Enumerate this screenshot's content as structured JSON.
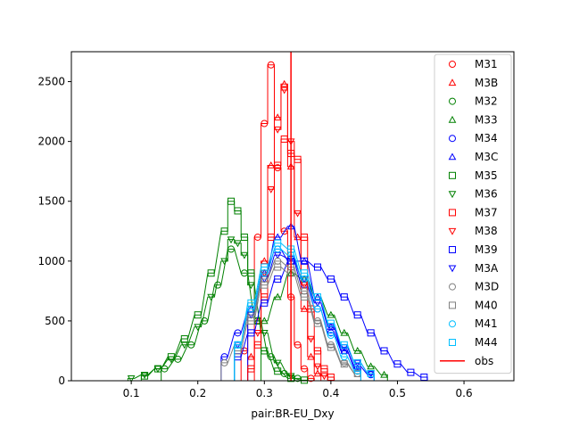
{
  "chart_data": {
    "type": "line",
    "title": "",
    "xlabel": "pair:BR-EU_Dxy",
    "ylabel": "",
    "xlim": [
      0.01,
      0.675
    ],
    "ylim": [
      0,
      2750
    ],
    "xticks": [
      0.1,
      0.2,
      0.3,
      0.4,
      0.5,
      0.6
    ],
    "xtick_labels": [
      "0.1",
      "0.2",
      "0.3",
      "0.4",
      "0.5",
      "0.6"
    ],
    "yticks": [
      0,
      500,
      1000,
      1500,
      2000,
      2500
    ],
    "ytick_labels": [
      "0",
      "500",
      "1000",
      "1500",
      "2000",
      "2500"
    ],
    "grid": false,
    "legend_placement": "top-right",
    "obs": {
      "name": "obs",
      "x": 0.34,
      "color": "#ff0000"
    },
    "series": [
      {
        "name": "M31",
        "marker": "o",
        "color": "#ff0000",
        "x": [
          0.27,
          0.28,
          0.29,
          0.3,
          0.31,
          0.32,
          0.33,
          0.34,
          0.35,
          0.36,
          0.37
        ],
        "values": [
          250,
          600,
          1200,
          2150,
          2640,
          1780,
          1250,
          700,
          300,
          100,
          20
        ]
      },
      {
        "name": "M3B",
        "marker": "^",
        "color": "#ff0000",
        "x": [
          0.28,
          0.29,
          0.3,
          0.31,
          0.32,
          0.33,
          0.34,
          0.35,
          0.36,
          0.37,
          0.38
        ],
        "values": [
          200,
          500,
          1000,
          1800,
          2200,
          2480,
          1790,
          1200,
          600,
          200,
          60
        ]
      },
      {
        "name": "M32",
        "marker": "o",
        "color": "#008000",
        "x": [
          0.15,
          0.17,
          0.19,
          0.21,
          0.23,
          0.25,
          0.27,
          0.29,
          0.31,
          0.33,
          0.35
        ],
        "values": [
          100,
          180,
          300,
          500,
          800,
          1100,
          900,
          500,
          200,
          60,
          20
        ]
      },
      {
        "name": "M33",
        "marker": "^",
        "color": "#008000",
        "x": [
          0.3,
          0.32,
          0.34,
          0.36,
          0.38,
          0.4,
          0.42,
          0.44,
          0.46,
          0.48
        ],
        "values": [
          500,
          700,
          900,
          850,
          700,
          550,
          400,
          250,
          120,
          50
        ]
      },
      {
        "name": "M34",
        "marker": "o",
        "color": "#0000ff",
        "x": [
          0.24,
          0.26,
          0.28,
          0.3,
          0.32,
          0.34,
          0.36,
          0.38,
          0.4,
          0.42,
          0.44,
          0.46
        ],
        "values": [
          200,
          400,
          600,
          900,
          1100,
          1000,
          800,
          600,
          400,
          250,
          120,
          50
        ]
      },
      {
        "name": "M3C",
        "marker": "^",
        "color": "#0000ff",
        "x": [
          0.28,
          0.3,
          0.32,
          0.34,
          0.36,
          0.38,
          0.4,
          0.42,
          0.44
        ],
        "values": [
          600,
          900,
          1200,
          1290,
          1000,
          700,
          450,
          250,
          100
        ]
      },
      {
        "name": "M35",
        "marker": "s",
        "color": "#008000",
        "x": [
          0.12,
          0.14,
          0.16,
          0.18,
          0.2,
          0.22,
          0.24,
          0.25,
          0.26,
          0.27,
          0.28,
          0.29,
          0.3,
          0.32,
          0.34,
          0.36
        ],
        "values": [
          40,
          100,
          200,
          350,
          550,
          900,
          1250,
          1500,
          1420,
          1200,
          900,
          500,
          250,
          80,
          20,
          5
        ]
      },
      {
        "name": "M36",
        "marker": "v",
        "color": "#008000",
        "x": [
          0.1,
          0.12,
          0.14,
          0.16,
          0.18,
          0.2,
          0.22,
          0.24,
          0.25,
          0.26,
          0.27,
          0.28,
          0.3,
          0.32,
          0.34
        ],
        "values": [
          20,
          50,
          100,
          180,
          300,
          450,
          700,
          1000,
          1180,
          1150,
          1050,
          800,
          400,
          150,
          40
        ]
      },
      {
        "name": "M37",
        "marker": "s",
        "color": "#ff0000",
        "x": [
          0.28,
          0.29,
          0.3,
          0.31,
          0.32,
          0.33,
          0.34,
          0.35,
          0.36,
          0.37,
          0.38,
          0.39,
          0.4
        ],
        "values": [
          100,
          300,
          700,
          1200,
          1800,
          2020,
          1900,
          1850,
          1200,
          600,
          250,
          100,
          30
        ]
      },
      {
        "name": "M38",
        "marker": "v",
        "color": "#ff0000",
        "x": [
          0.29,
          0.3,
          0.31,
          0.32,
          0.33,
          0.34,
          0.35,
          0.36,
          0.37,
          0.38,
          0.39
        ],
        "values": [
          400,
          900,
          1600,
          2100,
          2430,
          2000,
          1400,
          800,
          350,
          120,
          40
        ]
      },
      {
        "name": "M39",
        "marker": "s",
        "color": "#0000ff",
        "x": [
          0.26,
          0.28,
          0.3,
          0.32,
          0.34,
          0.36,
          0.38,
          0.4,
          0.42,
          0.44,
          0.46,
          0.48,
          0.5,
          0.52,
          0.54
        ],
        "values": [
          200,
          400,
          650,
          850,
          1000,
          1000,
          950,
          850,
          700,
          550,
          400,
          250,
          140,
          70,
          30
        ]
      },
      {
        "name": "M3A",
        "marker": "v",
        "color": "#0000ff",
        "x": [
          0.26,
          0.28,
          0.3,
          0.32,
          0.34,
          0.36,
          0.38,
          0.4,
          0.42,
          0.44,
          0.46
        ],
        "values": [
          300,
          550,
          850,
          1050,
          1020,
          850,
          650,
          450,
          280,
          150,
          60
        ]
      },
      {
        "name": "M3D",
        "marker": "o",
        "color": "#808080",
        "x": [
          0.24,
          0.26,
          0.28,
          0.3,
          0.32,
          0.34,
          0.36,
          0.38,
          0.4,
          0.42,
          0.44
        ],
        "values": [
          150,
          300,
          550,
          850,
          1000,
          950,
          750,
          500,
          300,
          150,
          60
        ]
      },
      {
        "name": "M40",
        "marker": "s",
        "color": "#808080",
        "x": [
          0.26,
          0.28,
          0.3,
          0.32,
          0.34,
          0.36,
          0.38,
          0.4,
          0.42,
          0.44
        ],
        "values": [
          250,
          500,
          800,
          950,
          900,
          700,
          480,
          280,
          140,
          60
        ]
      },
      {
        "name": "M41",
        "marker": "o",
        "color": "#00bfff",
        "x": [
          0.26,
          0.28,
          0.3,
          0.32,
          0.34,
          0.36,
          0.38,
          0.4,
          0.42,
          0.44
        ],
        "values": [
          300,
          600,
          900,
          1100,
          1050,
          850,
          600,
          380,
          200,
          80
        ]
      },
      {
        "name": "M44",
        "marker": "s",
        "color": "#00bfff",
        "x": [
          0.26,
          0.28,
          0.3,
          0.32,
          0.34,
          0.36,
          0.38,
          0.4,
          0.42,
          0.44,
          0.46
        ],
        "values": [
          300,
          650,
          950,
          1150,
          1100,
          900,
          700,
          480,
          300,
          150,
          60
        ]
      }
    ]
  }
}
